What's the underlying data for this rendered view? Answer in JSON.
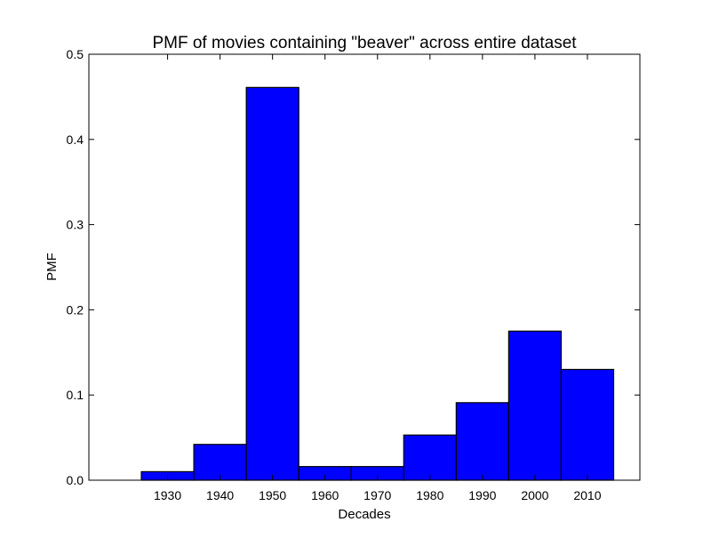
{
  "chart_data": {
    "type": "bar",
    "title": "PMF of movies containing \"beaver\" across entire dataset",
    "xlabel": "Decades",
    "ylabel": "PMF",
    "categories": [
      "1930",
      "1940",
      "1950",
      "1960",
      "1970",
      "1980",
      "1990",
      "2000",
      "2010"
    ],
    "x": [
      1930,
      1940,
      1950,
      1960,
      1970,
      1980,
      1990,
      2000,
      2010
    ],
    "values": [
      0.01,
      0.042,
      0.461,
      0.016,
      0.016,
      0.053,
      0.091,
      0.175,
      0.13
    ],
    "bar_width": 10,
    "xlim": [
      1915,
      2020
    ],
    "ylim": [
      0,
      0.5
    ],
    "yticks": [
      "0.0",
      "0.1",
      "0.2",
      "0.3",
      "0.4",
      "0.5"
    ],
    "ytick_values": [
      0,
      0.1,
      0.2,
      0.3,
      0.4,
      0.5
    ],
    "bar_color": "#0000ff",
    "edge_color": "#000000",
    "grid": false,
    "legend": "none"
  }
}
